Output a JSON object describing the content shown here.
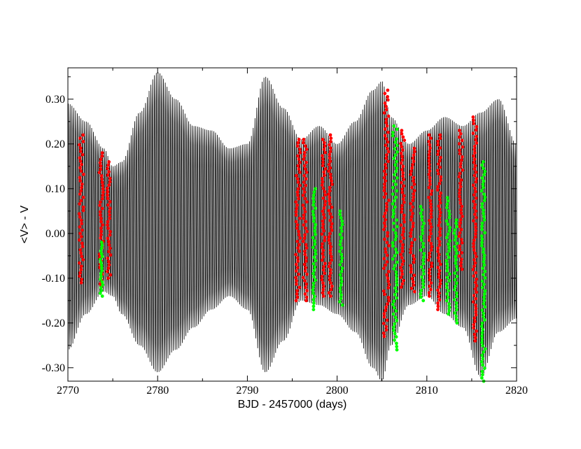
{
  "chart_data": {
    "type": "scatter",
    "title": "",
    "xlabel": "BJD - 2457000 (days)",
    "ylabel": "<V> - V",
    "xlim": [
      2770,
      2820
    ],
    "ylim": [
      -0.33,
      0.37
    ],
    "x_ticks": [
      2770,
      2780,
      2790,
      2800,
      2810,
      2820
    ],
    "x_tick_labels": [
      "2770",
      "2780",
      "2790",
      "2800",
      "2810",
      "2820"
    ],
    "y_ticks": [
      0.3,
      0.2,
      0.1,
      0.0,
      -0.1,
      -0.2,
      -0.3
    ],
    "y_tick_labels": [
      "0.30",
      "0.20",
      "0.10",
      "0.00",
      "-0.10",
      "-0.20",
      "-0.30"
    ],
    "grid": false,
    "legend": "none",
    "colors": {
      "model": "#000000",
      "red_points": "#ff0000",
      "green_points": "#00ff00"
    },
    "model_envelope": {
      "x": [
        2770,
        2772,
        2774,
        2775,
        2776,
        2778,
        2780,
        2782,
        2784,
        2786,
        2788,
        2790,
        2792,
        2794,
        2796,
        2798,
        2800,
        2802,
        2804,
        2805,
        2806,
        2808,
        2810,
        2812,
        2814,
        2816,
        2818,
        2820
      ],
      "upper": [
        0.29,
        0.25,
        0.19,
        0.15,
        0.16,
        0.27,
        0.36,
        0.3,
        0.24,
        0.23,
        0.19,
        0.2,
        0.35,
        0.28,
        0.21,
        0.24,
        0.2,
        0.25,
        0.32,
        0.34,
        0.26,
        0.2,
        0.23,
        0.26,
        0.24,
        0.27,
        0.3,
        0.2
      ],
      "lower": [
        -0.26,
        -0.18,
        -0.13,
        -0.14,
        -0.18,
        -0.25,
        -0.31,
        -0.26,
        -0.21,
        -0.17,
        -0.14,
        -0.17,
        -0.31,
        -0.24,
        -0.15,
        -0.16,
        -0.18,
        -0.22,
        -0.3,
        -0.33,
        -0.25,
        -0.16,
        -0.14,
        -0.18,
        -0.21,
        -0.32,
        -0.22,
        -0.19
      ],
      "period_days": 0.2
    },
    "series": [
      {
        "color": "red",
        "segments": [
          {
            "x_start": 2771.25,
            "x_end": 2771.75,
            "y_min": -0.11,
            "y_max": 0.22
          },
          {
            "x_start": 2773.5,
            "x_end": 2773.95,
            "y_min": -0.12,
            "y_max": 0.18
          },
          {
            "x_start": 2774.4,
            "x_end": 2774.75,
            "y_min": -0.1,
            "y_max": 0.16
          },
          {
            "x_start": 2795.4,
            "x_end": 2795.9,
            "y_min": -0.15,
            "y_max": 0.21
          },
          {
            "x_start": 2796.2,
            "x_end": 2796.65,
            "y_min": -0.15,
            "y_max": 0.21
          },
          {
            "x_start": 2798.3,
            "x_end": 2798.7,
            "y_min": -0.14,
            "y_max": 0.21
          },
          {
            "x_start": 2799.05,
            "x_end": 2799.45,
            "y_min": -0.14,
            "y_max": 0.22
          },
          {
            "x_start": 2805.2,
            "x_end": 2805.8,
            "y_min": -0.23,
            "y_max": 0.32
          },
          {
            "x_start": 2807.1,
            "x_end": 2807.5,
            "y_min": -0.12,
            "y_max": 0.23
          },
          {
            "x_start": 2808.2,
            "x_end": 2808.65,
            "y_min": -0.13,
            "y_max": 0.19
          },
          {
            "x_start": 2810.2,
            "x_end": 2810.55,
            "y_min": -0.14,
            "y_max": 0.22
          },
          {
            "x_start": 2811.2,
            "x_end": 2811.55,
            "y_min": -0.17,
            "y_max": 0.22
          },
          {
            "x_start": 2813.6,
            "x_end": 2814.0,
            "y_min": -0.08,
            "y_max": 0.23
          },
          {
            "x_start": 2815.15,
            "x_end": 2815.55,
            "y_min": -0.24,
            "y_max": 0.26
          }
        ]
      },
      {
        "color": "green",
        "segments": [
          {
            "x_start": 2773.6,
            "x_end": 2773.9,
            "y_min": -0.14,
            "y_max": -0.02
          },
          {
            "x_start": 2797.3,
            "x_end": 2797.6,
            "y_min": -0.17,
            "y_max": 0.1
          },
          {
            "x_start": 2800.3,
            "x_end": 2800.6,
            "y_min": -0.16,
            "y_max": 0.05
          },
          {
            "x_start": 2806.2,
            "x_end": 2806.7,
            "y_min": -0.26,
            "y_max": 0.24
          },
          {
            "x_start": 2809.3,
            "x_end": 2809.7,
            "y_min": -0.15,
            "y_max": 0.06
          },
          {
            "x_start": 2812.2,
            "x_end": 2812.55,
            "y_min": -0.18,
            "y_max": 0.08
          },
          {
            "x_start": 2813.05,
            "x_end": 2813.4,
            "y_min": -0.2,
            "y_max": 0.03
          },
          {
            "x_start": 2816.1,
            "x_end": 2816.5,
            "y_min": -0.33,
            "y_max": 0.16
          }
        ]
      }
    ]
  }
}
